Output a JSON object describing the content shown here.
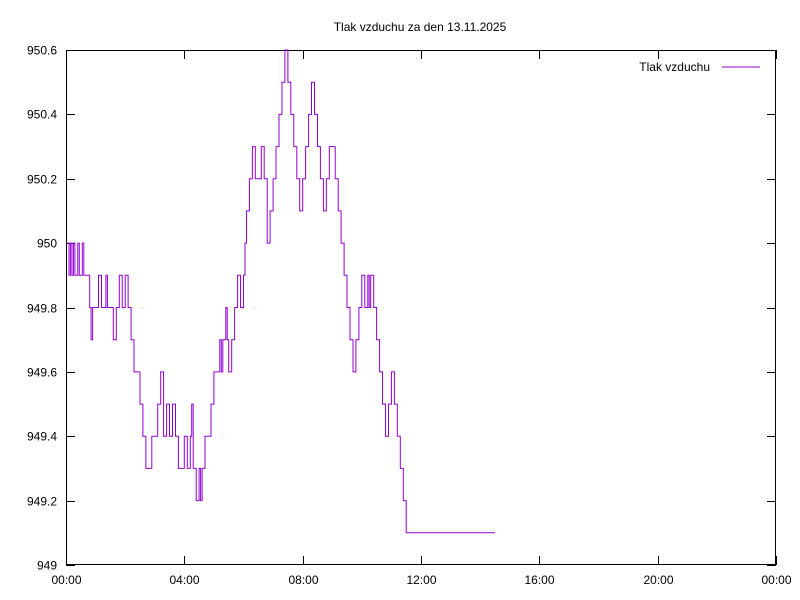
{
  "chart_data": {
    "type": "line",
    "title": "Tlak vzduchu za den 13.11.2025",
    "xlabel": "",
    "ylabel": "",
    "xlim": [
      0,
      24
    ],
    "ylim": [
      949,
      950.6
    ],
    "grid": false,
    "legend_position": "top-right",
    "x_ticks": [
      "00:00",
      "04:00",
      "08:00",
      "12:00",
      "16:00",
      "20:00",
      "00:00"
    ],
    "y_ticks": [
      "949",
      "949.2",
      "949.4",
      "949.6",
      "949.8",
      "950",
      "950.2",
      "950.4",
      "950.6"
    ],
    "series": [
      {
        "name": "Tlak vzduchu",
        "color": "#9400d3",
        "x_hours": [
          0.0,
          0.1,
          0.15,
          0.2,
          0.25,
          0.3,
          0.35,
          0.4,
          0.45,
          0.5,
          0.55,
          0.6,
          0.7,
          0.75,
          0.8,
          0.85,
          0.9,
          1.0,
          1.1,
          1.2,
          1.25,
          1.3,
          1.35,
          1.4,
          1.5,
          1.6,
          1.7,
          1.8,
          1.9,
          2.0,
          2.1,
          2.2,
          2.3,
          2.4,
          2.5,
          2.55,
          2.6,
          2.7,
          2.75,
          2.8,
          2.9,
          3.0,
          3.1,
          3.2,
          3.3,
          3.4,
          3.5,
          3.6,
          3.7,
          3.8,
          4.0,
          4.1,
          4.2,
          4.25,
          4.3,
          4.4,
          4.5,
          4.55,
          4.6,
          4.7,
          4.8,
          4.9,
          5.0,
          5.1,
          5.2,
          5.25,
          5.3,
          5.4,
          5.45,
          5.5,
          5.6,
          5.7,
          5.8,
          5.9,
          6.0,
          6.05,
          6.1,
          6.2,
          6.3,
          6.4,
          6.5,
          6.6,
          6.7,
          6.8,
          6.9,
          7.0,
          7.1,
          7.2,
          7.3,
          7.4,
          7.5,
          7.6,
          7.7,
          7.8,
          7.9,
          8.0,
          8.1,
          8.2,
          8.3,
          8.4,
          8.5,
          8.6,
          8.7,
          8.8,
          8.9,
          9.0,
          9.1,
          9.2,
          9.3,
          9.4,
          9.5,
          9.6,
          9.7,
          9.8,
          9.9,
          10.0,
          10.1,
          10.2,
          10.25,
          10.3,
          10.4,
          10.5,
          10.6,
          10.7,
          10.8,
          10.9,
          11.0,
          11.1,
          11.2,
          11.3,
          11.4,
          11.5,
          11.6,
          11.7,
          11.8,
          11.9,
          12.0,
          12.1,
          12.2,
          12.3,
          12.4,
          12.5,
          12.6,
          12.7,
          12.8,
          12.9,
          13.0,
          13.1,
          13.2,
          13.3,
          13.4,
          13.5,
          13.6,
          13.7,
          13.8,
          13.9,
          14.0,
          14.1,
          14.2,
          14.3,
          14.4,
          14.5
        ],
        "values": [
          950.0,
          949.9,
          950.0,
          949.9,
          950.0,
          949.9,
          949.9,
          950.0,
          949.9,
          949.9,
          950.0,
          949.9,
          949.9,
          949.9,
          949.8,
          949.7,
          949.8,
          949.8,
          949.9,
          949.8,
          949.8,
          949.8,
          949.9,
          949.8,
          949.8,
          949.7,
          949.8,
          949.9,
          949.8,
          949.9,
          949.8,
          949.7,
          949.6,
          949.6,
          949.5,
          949.5,
          949.4,
          949.3,
          949.3,
          949.3,
          949.4,
          949.4,
          949.5,
          949.6,
          949.4,
          949.5,
          949.4,
          949.5,
          949.4,
          949.3,
          949.4,
          949.3,
          949.4,
          949.5,
          949.3,
          949.2,
          949.3,
          949.2,
          949.3,
          949.4,
          949.4,
          949.5,
          949.6,
          949.6,
          949.7,
          949.6,
          949.7,
          949.8,
          949.7,
          949.6,
          949.7,
          949.8,
          949.9,
          949.8,
          949.9,
          950.0,
          950.1,
          950.2,
          950.3,
          950.2,
          950.2,
          950.3,
          950.2,
          950.0,
          950.1,
          950.2,
          950.3,
          950.4,
          950.5,
          950.6,
          950.5,
          950.4,
          950.3,
          950.2,
          950.1,
          950.2,
          950.3,
          950.4,
          950.5,
          950.4,
          950.3,
          950.2,
          950.1,
          950.2,
          950.3,
          950.3,
          950.2,
          950.1,
          950.0,
          949.9,
          949.8,
          949.7,
          949.6,
          949.7,
          949.8,
          949.9,
          949.8,
          949.9,
          949.8,
          949.9,
          949.8,
          949.7,
          949.6,
          949.5,
          949.4,
          949.5,
          949.6,
          949.5,
          949.4,
          949.3,
          949.2,
          949.1,
          949.1,
          949.1,
          949.1,
          949.1,
          949.1,
          949.1,
          949.1,
          949.1,
          949.1,
          949.1,
          949.1,
          949.1,
          949.1,
          949.1,
          949.1,
          949.1,
          949.1,
          949.1,
          949.1,
          949.1,
          949.1,
          949.1,
          949.1,
          949.1,
          949.1,
          949.1,
          949.1,
          949.1,
          949.1,
          949.1
        ]
      }
    ]
  }
}
